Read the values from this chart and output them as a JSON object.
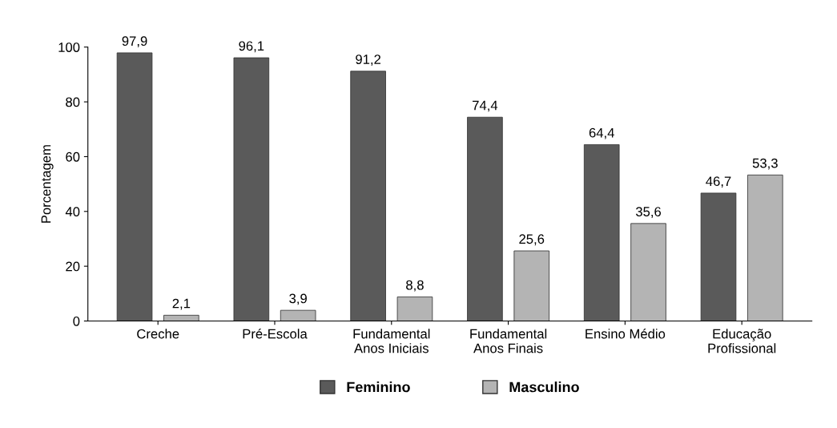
{
  "chart_data": {
    "type": "bar",
    "ylabel": "Porcentagem",
    "categories": [
      "Creche",
      "Pré-Escola",
      "Fundamental\nAnos Iniciais",
      "Fundamental\nAnos Finais",
      "Ensino Médio",
      "Educação\nProfissional"
    ],
    "series": [
      {
        "name": "Feminino",
        "color": "#5a5a5a",
        "values": [
          97.9,
          96.1,
          91.2,
          74.4,
          64.4,
          46.7
        ],
        "value_labels": [
          "97,9",
          "96,1",
          "91,2",
          "74,4",
          "64,4",
          "46,7"
        ]
      },
      {
        "name": "Masculino",
        "color": "#b4b4b4",
        "values": [
          2.1,
          3.9,
          8.8,
          25.6,
          35.6,
          53.3
        ],
        "value_labels": [
          "2,1",
          "3,9",
          "8,8",
          "25,6",
          "35,6",
          "53,3"
        ]
      }
    ],
    "ylim": [
      0,
      100
    ],
    "yticks": [
      0,
      20,
      40,
      60,
      80,
      100
    ],
    "grid": false,
    "legend": "bottom"
  }
}
